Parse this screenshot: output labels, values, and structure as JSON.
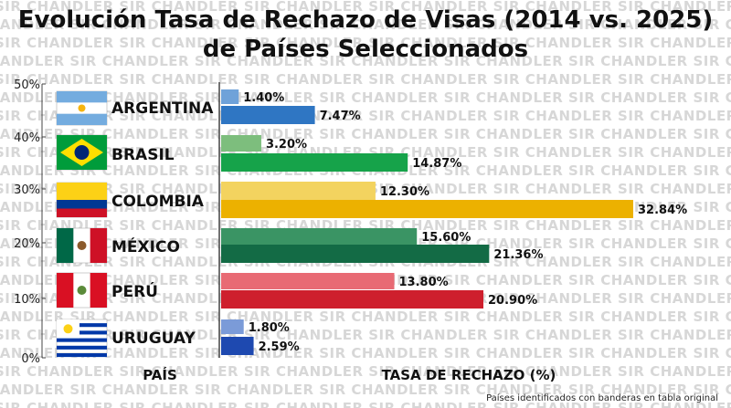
{
  "watermark_text": "SIR CHANDLER",
  "chart_data": {
    "type": "bar",
    "orientation": "horizontal",
    "title_lines": [
      "Evolución Tasa de Rechazo de Visas (2014 vs. 2025)",
      "de Países Seleccionados"
    ],
    "categories": [
      "ARGENTINA",
      "BRASIL",
      "COLOMBIA",
      "MÉXICO",
      "PERÚ",
      "URUGUAY"
    ],
    "series": [
      {
        "key": "2014",
        "values": [
          1.4,
          3.2,
          12.3,
          15.6,
          13.8,
          1.8
        ],
        "labels": [
          "1.40%",
          "3.20%",
          "12.30%",
          "15.60%",
          "13.80%",
          "1.80%"
        ]
      },
      {
        "key": "2025",
        "values": [
          7.47,
          14.87,
          32.84,
          21.36,
          20.9,
          2.59
        ],
        "labels": [
          "7.47%",
          "14.87%",
          "32.84%",
          "21.36%",
          "20.90%",
          "2.59%"
        ]
      }
    ],
    "colors_2014": [
      "#6fa2d9",
      "#7dbe7d",
      "#f3d35f",
      "#3a9464",
      "#e86a74",
      "#7b9bd8"
    ],
    "colors_2025": [
      "#2f76c3",
      "#16a34a",
      "#ecb100",
      "#136b45",
      "#ce1f2d",
      "#1e49b0"
    ],
    "xlim": [
      0,
      34
    ],
    "y_axis": {
      "ticks": [
        "50%",
        "40%",
        "30%",
        "20%",
        "10%",
        "0%"
      ]
    },
    "xlabel": "TASA DE RECHAZO (%)",
    "category_axis_label": "PAÍS",
    "grid": false
  },
  "footnote": "Países identificados con banderas en tabla original"
}
